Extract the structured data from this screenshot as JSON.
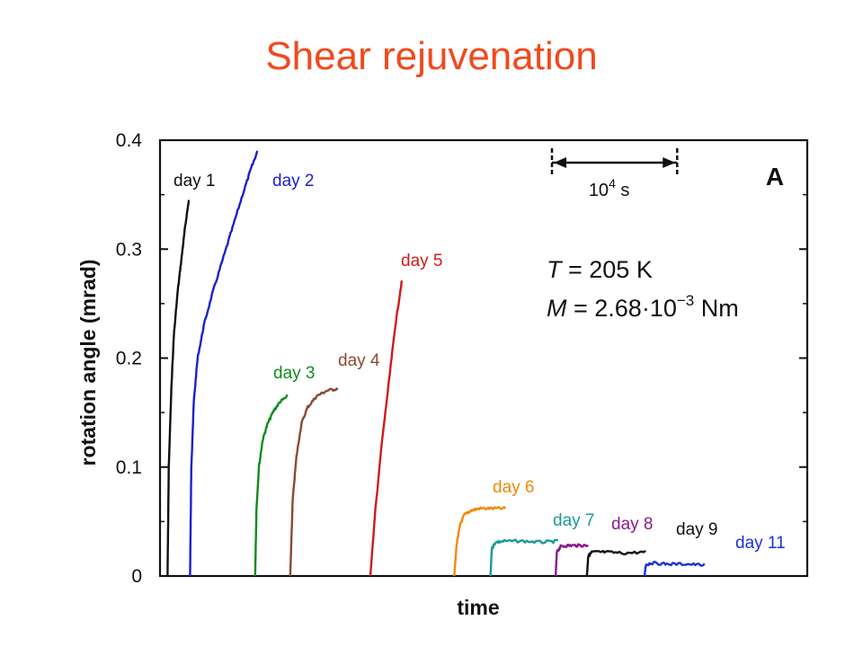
{
  "page": {
    "title": "Shear rejuvenation"
  },
  "chart_data": {
    "type": "line",
    "title": "",
    "xlabel": "time",
    "ylabel": "rotation angle (mrad)",
    "ylim": [
      0,
      0.4
    ],
    "yticks": [
      0,
      0.1,
      0.2,
      0.3,
      0.4
    ],
    "yticklabels": [
      "0",
      "0.1",
      "0.2",
      "0.3",
      "0.4"
    ],
    "x_unit_note": "x positions in units of 10^4 s (scale bar); no numeric x ticks",
    "panel_label": "A",
    "scale_bar": {
      "length": 1.0,
      "label_base": "10",
      "label_exp": "4",
      "label_unit": "s"
    },
    "annotations": {
      "T_symbol": "T",
      "T_eq": "= 205 K",
      "M_symbol": "M",
      "M_eq": "= 2.68·10",
      "M_exp": "−3",
      "M_unit": "Nm"
    },
    "xlim": [
      0,
      5.17
    ],
    "series": [
      {
        "name": "day 1",
        "color": "#111111",
        "x": [
          0.06,
          0.07,
          0.09,
          0.11,
          0.14,
          0.17,
          0.2,
          0.23
        ],
        "y": [
          0.0,
          0.1,
          0.17,
          0.22,
          0.26,
          0.29,
          0.32,
          0.345
        ]
      },
      {
        "name": "day 2",
        "color": "#1a22c8",
        "x": [
          0.24,
          0.25,
          0.27,
          0.3,
          0.35,
          0.42,
          0.5,
          0.58,
          0.66,
          0.73,
          0.78
        ],
        "y": [
          0.0,
          0.1,
          0.16,
          0.2,
          0.23,
          0.26,
          0.29,
          0.32,
          0.35,
          0.375,
          0.39
        ]
      },
      {
        "name": "day 3",
        "color": "#118c1e",
        "x": [
          0.76,
          0.77,
          0.79,
          0.82,
          0.86,
          0.91,
          0.96,
          1.02
        ],
        "y": [
          0.0,
          0.06,
          0.1,
          0.125,
          0.14,
          0.152,
          0.16,
          0.165
        ]
      },
      {
        "name": "day 4",
        "color": "#8a4a30",
        "x": [
          1.04,
          1.06,
          1.09,
          1.13,
          1.18,
          1.25,
          1.33,
          1.42
        ],
        "y": [
          0.0,
          0.07,
          0.11,
          0.14,
          0.155,
          0.165,
          0.17,
          0.172
        ]
      },
      {
        "name": "day 5",
        "color": "#d11a1a",
        "x": [
          1.68,
          1.72,
          1.77,
          1.83,
          1.88,
          1.93
        ],
        "y": [
          0.0,
          0.06,
          0.12,
          0.18,
          0.23,
          0.27
        ]
      },
      {
        "name": "day 6",
        "color": "#f08a0a",
        "x": [
          2.35,
          2.37,
          2.4,
          2.43,
          2.48,
          2.55,
          2.65,
          2.76
        ],
        "y": [
          0.0,
          0.03,
          0.048,
          0.056,
          0.06,
          0.062,
          0.062,
          0.062
        ]
      },
      {
        "name": "day 7",
        "color": "#1a9a9a",
        "x": [
          2.64,
          2.65,
          2.68,
          2.75,
          2.9,
          3.05,
          3.18
        ],
        "y": [
          0.0,
          0.025,
          0.031,
          0.032,
          0.032,
          0.031,
          0.032
        ]
      },
      {
        "name": "day 8",
        "color": "#8a1a8a",
        "x": [
          3.16,
          3.17,
          3.2,
          3.26,
          3.34,
          3.42
        ],
        "y": [
          0.0,
          0.022,
          0.027,
          0.028,
          0.028,
          0.028
        ]
      },
      {
        "name": "day 9",
        "color": "#111111",
        "x": [
          3.41,
          3.42,
          3.45,
          3.55,
          3.7,
          3.88
        ],
        "y": [
          0.0,
          0.018,
          0.022,
          0.022,
          0.021,
          0.022
        ]
      },
      {
        "name": "day 11",
        "color": "#1a32d8",
        "x": [
          3.87,
          3.88,
          3.92,
          4.05,
          4.2,
          4.35
        ],
        "y": [
          0.0,
          0.01,
          0.012,
          0.011,
          0.011,
          0.01
        ]
      }
    ]
  }
}
